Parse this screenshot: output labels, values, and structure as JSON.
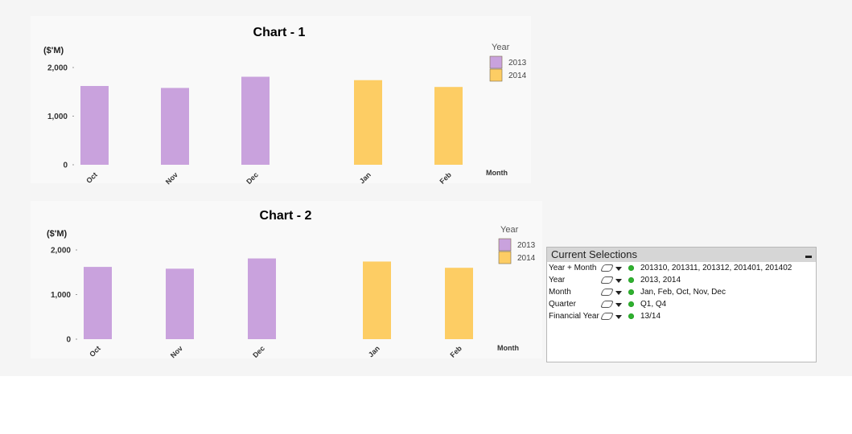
{
  "chart_data": [
    {
      "type": "bar",
      "title": "Chart - 1",
      "ylabel": "($'M)",
      "xlabel": "Month",
      "categories": [
        "Oct",
        "Nov",
        "Dec",
        "Jan",
        "Feb"
      ],
      "values": [
        1620,
        1580,
        1810,
        1740,
        1600
      ],
      "yticks": [
        "0",
        "1,000",
        "2,000"
      ],
      "ylim": [
        0,
        2000
      ],
      "legend": {
        "title": "Year",
        "items": [
          {
            "label": "2013",
            "color": "#c9a2dd"
          },
          {
            "label": "2014",
            "color": "#fdcd64"
          }
        ]
      },
      "bar_series_index": [
        0,
        0,
        0,
        1,
        1
      ]
    },
    {
      "type": "bar",
      "title": "Chart - 2",
      "ylabel": "($'M)",
      "xlabel": "Month",
      "categories": [
        "Oct",
        "Nov",
        "Dec",
        "Jan",
        "Feb"
      ],
      "values": [
        1620,
        1580,
        1810,
        1740,
        1600
      ],
      "yticks": [
        "0",
        "1,000",
        "2,000"
      ],
      "ylim": [
        0,
        2000
      ],
      "legend": {
        "title": "Year",
        "items": [
          {
            "label": "2013",
            "color": "#c9a2dd"
          },
          {
            "label": "2014",
            "color": "#fdcd64"
          }
        ]
      },
      "bar_series_index": [
        0,
        0,
        0,
        1,
        1
      ]
    }
  ],
  "current_selections": {
    "title": "Current Selections",
    "rows": [
      {
        "field": "Year + Month",
        "values": "201310, 201311, 201312, 201401, 201402"
      },
      {
        "field": "Year",
        "values": "2013, 2014"
      },
      {
        "field": "Month",
        "values": "Jan, Feb, Oct, Nov, Dec"
      },
      {
        "field": "Quarter",
        "values": "Q1, Q4"
      },
      {
        "field": "Financial Year",
        "values": "13/14"
      }
    ]
  }
}
